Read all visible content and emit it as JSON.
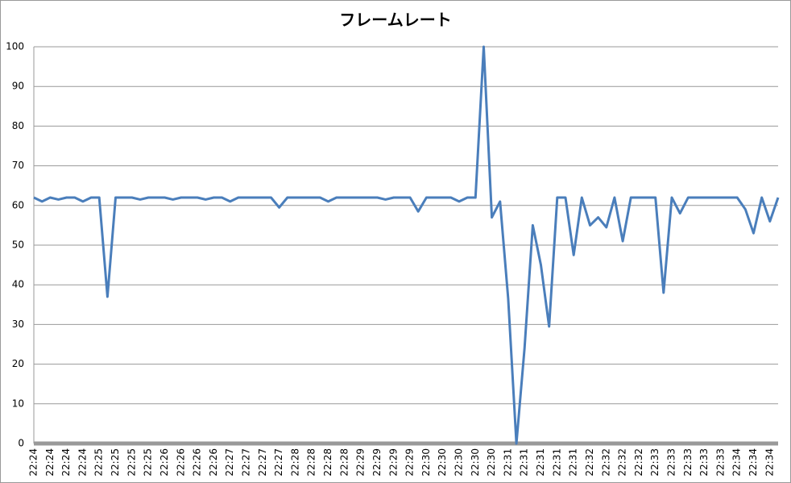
{
  "chart_data": {
    "type": "line",
    "title": "フレームレート",
    "categories": [
      "22:24",
      null,
      "22:24",
      null,
      "22:24",
      null,
      "22:24",
      null,
      "22:25",
      null,
      "22:25",
      null,
      "22:25",
      null,
      "22:25",
      null,
      "22:26",
      null,
      "22:26",
      null,
      "22:26",
      null,
      "22:26",
      null,
      "22:27",
      null,
      "22:27",
      null,
      "22:27",
      null,
      "22:27",
      null,
      "22:28",
      null,
      "22:28",
      null,
      "22:28",
      null,
      "22:28",
      null,
      "22:29",
      null,
      "22:29",
      null,
      "22:29",
      null,
      "22:29",
      null,
      "22:30",
      null,
      "22:30",
      null,
      "22:30",
      null,
      "22:30",
      null,
      "22:30",
      null,
      "22:31",
      null,
      "22:31",
      null,
      "22:31",
      null,
      "22:31",
      null,
      "22:31",
      null,
      "22:32",
      null,
      "22:32",
      null,
      "22:32",
      null,
      "22:32",
      null,
      "22:33",
      null,
      "22:33",
      null,
      "22:33",
      null,
      "22:33",
      null,
      "22:33",
      null,
      "22:34",
      null,
      "22:34",
      null,
      "22:34",
      null
    ],
    "values": [
      62,
      61,
      62,
      61.5,
      62,
      62,
      61,
      62,
      62,
      37,
      62,
      62,
      62,
      61.5,
      62,
      62,
      62,
      61.5,
      62,
      62,
      62,
      61.5,
      62,
      62,
      61,
      62,
      62,
      62,
      62,
      62,
      59.5,
      62,
      62,
      62,
      62,
      62,
      61,
      62,
      62,
      62,
      62,
      62,
      62,
      61.5,
      62,
      62,
      62,
      58.5,
      62,
      62,
      62,
      62,
      61,
      62,
      62,
      100,
      57,
      61,
      36.5,
      0,
      24,
      55,
      45,
      29.5,
      62,
      62,
      47.5,
      62,
      55,
      57,
      54.5,
      62,
      51,
      62,
      62,
      62,
      62,
      38,
      62,
      58,
      62,
      62,
      62,
      62,
      62,
      62,
      62,
      59,
      53,
      62,
      56,
      62
    ],
    "color": "#4a7ebb",
    "ylim": [
      0,
      100
    ],
    "yticks": [
      0,
      10,
      20,
      30,
      40,
      50,
      60,
      70,
      80,
      90,
      100
    ],
    "grid": true
  }
}
